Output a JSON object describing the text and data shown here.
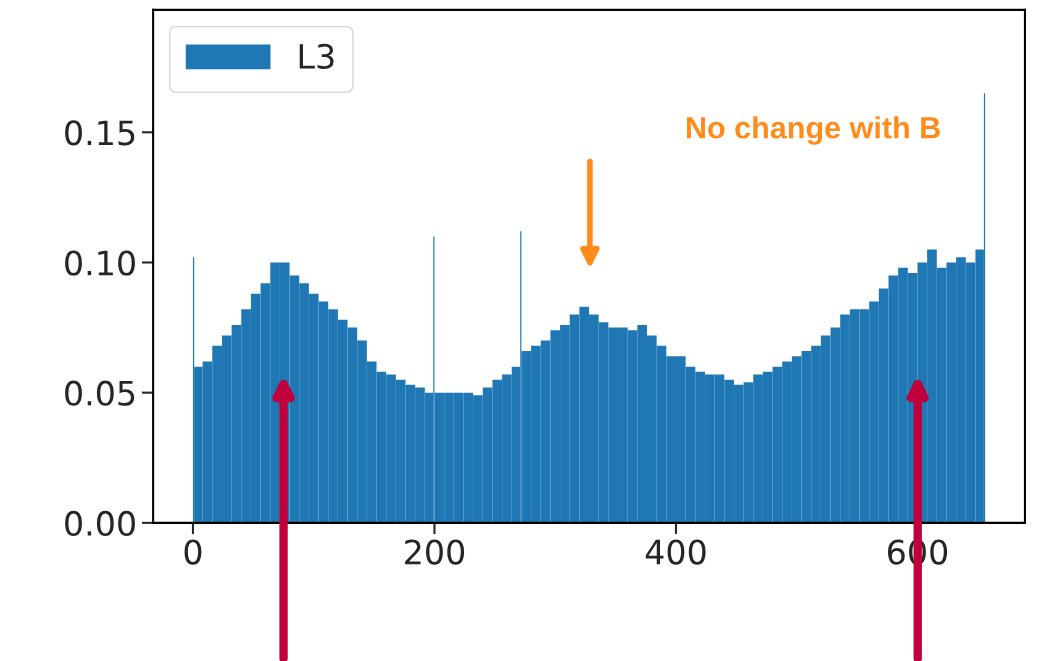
{
  "chart_data": {
    "type": "histogram",
    "bins": [
      0,
      1,
      8,
      16,
      24,
      32,
      40,
      48,
      56,
      64,
      72,
      80,
      88,
      96,
      104,
      112,
      120,
      128,
      136,
      144,
      152,
      160,
      168,
      176,
      184,
      192,
      199,
      200,
      208,
      216,
      224,
      232,
      240,
      248,
      256,
      264,
      271,
      272,
      280,
      288,
      296,
      304,
      312,
      320,
      328,
      336,
      344,
      352,
      360,
      368,
      376,
      384,
      392,
      400,
      408,
      416,
      424,
      432,
      440,
      448,
      456,
      464,
      472,
      480,
      488,
      496,
      504,
      512,
      520,
      528,
      536,
      544,
      552,
      560,
      568,
      576,
      584,
      592,
      600,
      608,
      616,
      624,
      632,
      640,
      648,
      655,
      656
    ],
    "series": [
      {
        "name": "L3",
        "color": "#1f77b4",
        "values": [
          0.102,
          0.06,
          0.062,
          0.068,
          0.072,
          0.076,
          0.082,
          0.088,
          0.092,
          0.1,
          0.1,
          0.095,
          0.092,
          0.088,
          0.085,
          0.082,
          0.078,
          0.075,
          0.07,
          0.062,
          0.058,
          0.057,
          0.055,
          0.053,
          0.052,
          0.05,
          0.11,
          0.05,
          0.05,
          0.05,
          0.05,
          0.049,
          0.052,
          0.055,
          0.057,
          0.06,
          0.112,
          0.066,
          0.068,
          0.07,
          0.074,
          0.076,
          0.08,
          0.083,
          0.08,
          0.077,
          0.075,
          0.075,
          0.074,
          0.076,
          0.072,
          0.068,
          0.064,
          0.064,
          0.06,
          0.058,
          0.057,
          0.057,
          0.055,
          0.053,
          0.054,
          0.057,
          0.058,
          0.06,
          0.062,
          0.064,
          0.066,
          0.068,
          0.072,
          0.075,
          0.08,
          0.082,
          0.082,
          0.085,
          0.09,
          0.095,
          0.098,
          0.096,
          0.1,
          0.105,
          0.098,
          0.1,
          0.102,
          0.1,
          0.105,
          0.165
        ]
      }
    ],
    "xlim": [
      -33,
      689
    ],
    "xticks": [
      0,
      200,
      400,
      600
    ],
    "ylim": [
      0,
      0.197
    ],
    "yticks": [
      {
        "value": 0,
        "label": "0.00"
      },
      {
        "value": 0.05,
        "label": "0.05"
      },
      {
        "value": 0.1,
        "label": "0.10"
      },
      {
        "value": 0.15,
        "label": "0.15"
      }
    ],
    "legend": "top left",
    "grid": false,
    "annotations": [
      "No change with B"
    ]
  }
}
